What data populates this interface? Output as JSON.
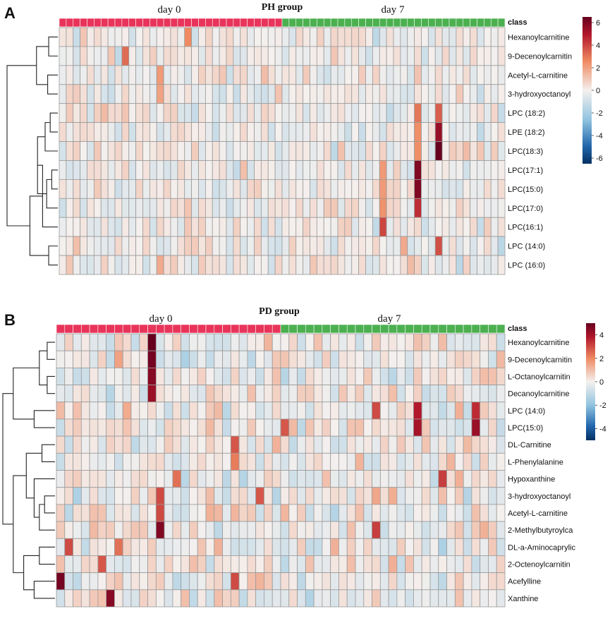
{
  "colors": {
    "low": "#2166ac",
    "mid": "#f4f0ee",
    "high": "#b2182b",
    "class_day0": "#e8345a",
    "class_day7": "#4cb050",
    "grid": "#9a9a9a"
  },
  "chart_data": [
    {
      "type": "heatmap",
      "panel": "A",
      "title": "PH group",
      "class_label": "class",
      "groups": [
        {
          "name": "day 0",
          "count": 32
        },
        {
          "name": "day 7",
          "count": 32
        }
      ],
      "rows": [
        "Hexanoylcarnitine",
        "9-Decenoylcarnitin",
        "Acetyl-L-carnitine",
        "3-hydroxyoctanoyl",
        "LPC (18:2)",
        "LPE (18:2)",
        "LPC(18:3)",
        "LPC(17:1)",
        "LPC(15:0)",
        "LPC(17:0)",
        "LPC(16:1)",
        "LPC (14:0)",
        "LPC (16:0)"
      ],
      "colorbar": {
        "min": -6.5,
        "max": 6.5,
        "ticks": [
          6,
          4,
          2,
          0,
          -2,
          -4,
          -6
        ]
      },
      "seed": 7,
      "hotspots": [
        {
          "row": 0,
          "col": 18,
          "value": 2.6
        },
        {
          "row": 1,
          "col": 9,
          "value": 3.2
        },
        {
          "row": 2,
          "col": 14,
          "value": 2.2
        },
        {
          "row": 3,
          "col": 14,
          "value": 2.0
        },
        {
          "row": 4,
          "col": 51,
          "value": 3.0
        },
        {
          "row": 4,
          "col": 54,
          "value": 3.5
        },
        {
          "row": 5,
          "col": 51,
          "value": 2.5
        },
        {
          "row": 5,
          "col": 54,
          "value": 5.5
        },
        {
          "row": 6,
          "col": 54,
          "value": 6.5
        },
        {
          "row": 6,
          "col": 51,
          "value": 2.5
        },
        {
          "row": 7,
          "col": 51,
          "value": 6.0
        },
        {
          "row": 7,
          "col": 46,
          "value": 2.2
        },
        {
          "row": 8,
          "col": 51,
          "value": 6.0
        },
        {
          "row": 8,
          "col": 46,
          "value": 2.2
        },
        {
          "row": 9,
          "col": 51,
          "value": 4.5
        },
        {
          "row": 9,
          "col": 46,
          "value": 2.4
        },
        {
          "row": 10,
          "col": 46,
          "value": 4.0
        },
        {
          "row": 11,
          "col": 54,
          "value": 3.8
        },
        {
          "row": 11,
          "col": 49,
          "value": 1.8
        },
        {
          "row": 12,
          "col": 14,
          "value": 1.8
        }
      ],
      "dendrogram": [
        [
          0,
          1,
          0.18
        ],
        [
          2,
          3,
          0.2
        ],
        [
          13,
          14,
          0.42
        ],
        [
          4,
          5,
          0.15
        ],
        [
          16,
          6,
          0.25
        ],
        [
          7,
          8,
          0.12
        ],
        [
          18,
          9,
          0.22
        ],
        [
          17,
          19,
          0.4
        ],
        [
          11,
          12,
          0.18
        ],
        [
          10,
          20,
          0.3
        ],
        [
          21,
          22,
          0.55
        ],
        [
          15,
          23,
          1.0
        ]
      ]
    },
    {
      "type": "heatmap",
      "panel": "B",
      "title": "PD group",
      "class_label": "class",
      "groups": [
        {
          "name": "day 0",
          "count": 27
        },
        {
          "name": "day 7",
          "count": 27
        }
      ],
      "rows": [
        "Hexanoylcarnitine",
        "9-Decenoylcarnitin",
        "L-Octanoylcarnitin",
        "Decanoylcarnitine",
        "LPC (14:0)",
        "LPC(15:0)",
        "DL-Carnitine",
        "L-Phenylalanine",
        "Hypoxanthine",
        "3-hydroxyoctanoyl",
        "Acetyl-L-carnitine",
        "2-Methylbutyroylca",
        "DL-a-Aminocaprylic",
        "2-Octenoylcarnitin",
        "Acefylline",
        "Xanthine"
      ],
      "colorbar": {
        "min": -5,
        "max": 5,
        "ticks": [
          4,
          2,
          0,
          -2,
          -4
        ]
      },
      "seed": 23,
      "hotspots": [
        {
          "row": 0,
          "col": 11,
          "value": 5.0
        },
        {
          "row": 1,
          "col": 11,
          "value": 4.8
        },
        {
          "row": 2,
          "col": 11,
          "value": 4.5
        },
        {
          "row": 3,
          "col": 11,
          "value": 4.2
        },
        {
          "row": 4,
          "col": 38,
          "value": 3.0
        },
        {
          "row": 4,
          "col": 43,
          "value": 3.8
        },
        {
          "row": 4,
          "col": 50,
          "value": 3.5
        },
        {
          "row": 5,
          "col": 27,
          "value": 2.8
        },
        {
          "row": 5,
          "col": 43,
          "value": 4.0
        },
        {
          "row": 5,
          "col": 50,
          "value": 4.2
        },
        {
          "row": 6,
          "col": 21,
          "value": 2.8
        },
        {
          "row": 7,
          "col": 21,
          "value": 2.2
        },
        {
          "row": 8,
          "col": 46,
          "value": 3.2
        },
        {
          "row": 8,
          "col": 14,
          "value": 2.4
        },
        {
          "row": 9,
          "col": 12,
          "value": 3.0
        },
        {
          "row": 9,
          "col": 24,
          "value": 2.8
        },
        {
          "row": 10,
          "col": 12,
          "value": 3.0
        },
        {
          "row": 11,
          "col": 12,
          "value": 4.6
        },
        {
          "row": 11,
          "col": 38,
          "value": 3.2
        },
        {
          "row": 12,
          "col": 1,
          "value": 3.0
        },
        {
          "row": 12,
          "col": 7,
          "value": 2.4
        },
        {
          "row": 13,
          "col": 5,
          "value": 2.8
        },
        {
          "row": 14,
          "col": 0,
          "value": 4.8
        },
        {
          "row": 14,
          "col": 21,
          "value": 3.0
        },
        {
          "row": 15,
          "col": 6,
          "value": 4.5
        }
      ],
      "dendrogram": [
        [
          0,
          1,
          0.15
        ],
        [
          2,
          3,
          0.15
        ],
        [
          16,
          17,
          0.3
        ],
        [
          4,
          5,
          0.4
        ],
        [
          18,
          19,
          0.8
        ],
        [
          6,
          7,
          0.25
        ],
        [
          9,
          10,
          0.2
        ],
        [
          22,
          11,
          0.3
        ],
        [
          8,
          23,
          0.4
        ],
        [
          21,
          24,
          0.55
        ],
        [
          12,
          13,
          0.3
        ],
        [
          14,
          15,
          0.4
        ],
        [
          26,
          27,
          0.6
        ],
        [
          25,
          28,
          0.8
        ],
        [
          20,
          29,
          1.0
        ]
      ]
    }
  ]
}
